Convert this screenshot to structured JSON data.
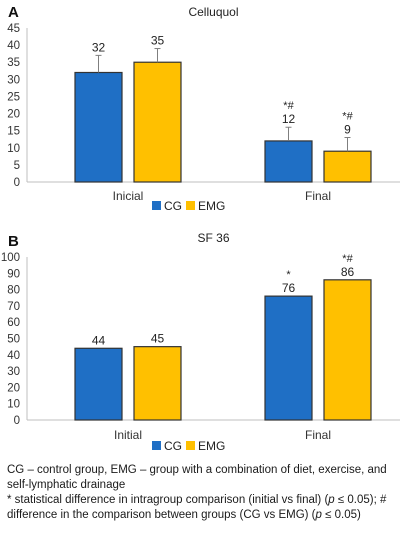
{
  "chart_data": [
    {
      "type": "bar",
      "panel_label": "A",
      "title": "Celluquol",
      "categories": [
        "Inicial",
        "Final"
      ],
      "series": [
        {
          "name": "CG",
          "values": [
            32,
            12
          ],
          "errors": [
            5,
            4
          ],
          "annotations": [
            "",
            "*#"
          ]
        },
        {
          "name": "EMG",
          "values": [
            35,
            9
          ],
          "errors": [
            4,
            4
          ],
          "annotations": [
            "",
            "*#"
          ]
        }
      ],
      "ylim": [
        0,
        45
      ],
      "yticks": [
        0,
        5,
        10,
        15,
        20,
        25,
        30,
        35,
        40,
        45
      ],
      "grid": false,
      "legend": "bottom-center",
      "colors": {
        "CG": "#1f6fc5",
        "EMG": "#ffc000"
      }
    },
    {
      "type": "bar",
      "panel_label": "B",
      "title": "SF 36",
      "categories": [
        "Initial",
        "Final"
      ],
      "series": [
        {
          "name": "CG",
          "values": [
            44,
            76
          ],
          "annotations": [
            "",
            "*"
          ]
        },
        {
          "name": "EMG",
          "values": [
            45,
            86
          ],
          "annotations": [
            "",
            "*#"
          ]
        }
      ],
      "ylim": [
        0,
        100
      ],
      "yticks": [
        0,
        10,
        20,
        30,
        40,
        50,
        60,
        70,
        80,
        90,
        100
      ],
      "grid": false,
      "legend": "bottom-center",
      "colors": {
        "CG": "#1f6fc5",
        "EMG": "#ffc000"
      }
    }
  ],
  "caption": {
    "line1": "CG – control group, EMG – group with a combination of diet, exercise, and self-lymphatic drainage",
    "line2a": "* statistical difference in intragroup comparison (initial vs final) (",
    "p1": "p",
    "line2b": " ≤ 0.05); # difference in the comparison between groups (CG vs EMG) (",
    "p2": "p",
    "line2c": " ≤ 0.05)"
  }
}
